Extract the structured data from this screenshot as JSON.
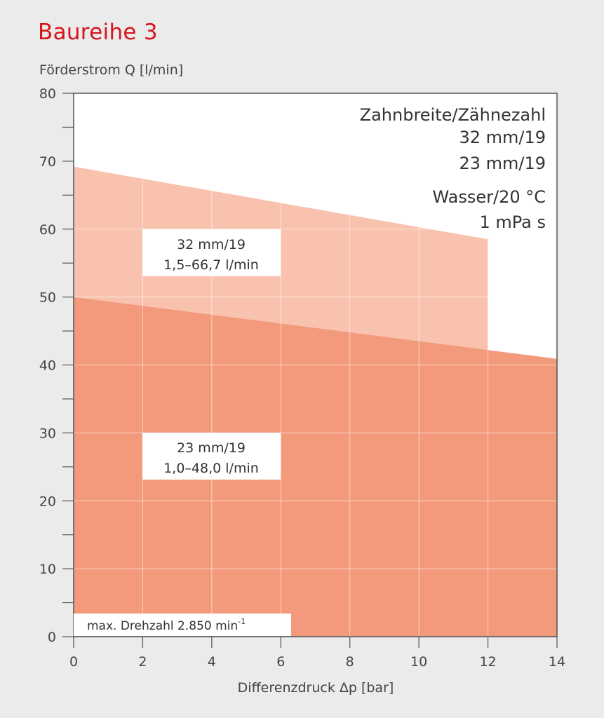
{
  "chart_data": {
    "type": "area",
    "title": "Baureihe 3",
    "ylabel": "Förderstrom Q [l/min]",
    "xlabel": "Differenzdruck Δp [bar]",
    "xlim": [
      0,
      14
    ],
    "ylim": [
      0,
      80
    ],
    "x_ticks": [
      0,
      2,
      4,
      6,
      8,
      10,
      12,
      14
    ],
    "y_ticks": [
      0,
      10,
      20,
      30,
      40,
      50,
      60,
      70,
      80
    ],
    "grid": true,
    "series": [
      {
        "name": "32 mm/19",
        "range_label": "1,5–66,7 l/min",
        "color": "#f8c2ae",
        "x": [
          0,
          12
        ],
        "y": [
          69.2,
          58.5
        ]
      },
      {
        "name": "23 mm/19",
        "range_label": "1,0–48,0 l/min",
        "color": "#f29a7b",
        "x": [
          0,
          14
        ],
        "y": [
          50.0,
          40.9
        ]
      }
    ],
    "legend": {
      "heading": "Zahnbreite/Zähnezahl",
      "entries": [
        "32 mm/19",
        "23 mm/19"
      ],
      "fluid": "Wasser/20 °C",
      "viscosity": "1 mPa s"
    },
    "annotation": {
      "text": "max. Drehzahl 2.850 min",
      "superscript": "-1"
    }
  }
}
